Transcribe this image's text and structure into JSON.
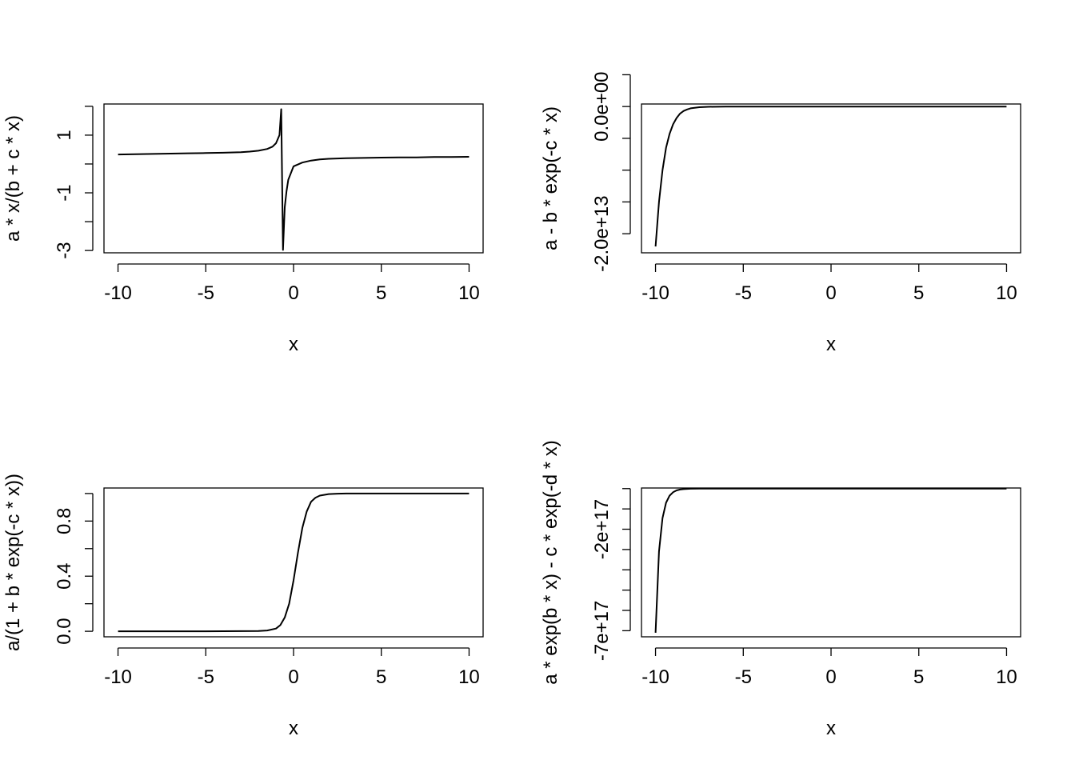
{
  "chart_data": [
    {
      "type": "line",
      "title": "",
      "xlabel": "x",
      "ylabel": "a * x/(b + c * x)",
      "xlim": [
        -10.8,
        10.8
      ],
      "ylim": [
        -3.08,
        2.08
      ],
      "x_ticks": [
        -10,
        -5,
        0,
        5,
        10
      ],
      "x_tick_labels": [
        "-10",
        "-5",
        "0",
        "5",
        "10"
      ],
      "y_ticks": [
        -3,
        -2,
        -1,
        0,
        1,
        2
      ],
      "y_tick_labels": [
        "-3",
        "",
        "-1",
        "",
        "1",
        ""
      ],
      "grid": false,
      "series": [
        {
          "x": [
            -10,
            -9,
            -8,
            -7,
            -6,
            -5,
            -4,
            -3,
            -2.5,
            -2,
            -1.5,
            -1.2,
            -1,
            -0.8,
            -0.7,
            -0.6,
            -0.5,
            -0.4,
            -0.3,
            0,
            0.5,
            1,
            1.5,
            2,
            3,
            4,
            5,
            6,
            7,
            8,
            9,
            10
          ],
          "y": [
            0.33,
            0.34,
            0.35,
            0.36,
            0.37,
            0.38,
            0.39,
            0.41,
            0.43,
            0.46,
            0.52,
            0.6,
            0.72,
            1.0,
            1.9,
            -2.98,
            -1.5,
            -0.95,
            -0.55,
            -0.08,
            0.05,
            0.12,
            0.16,
            0.18,
            0.2,
            0.21,
            0.22,
            0.23,
            0.23,
            0.24,
            0.24,
            0.25
          ]
        }
      ]
    },
    {
      "type": "line",
      "title": "",
      "xlabel": "x",
      "ylabel": "a - b * exp(-c * x)",
      "xlim": [
        -10.8,
        10.8
      ],
      "ylim": [
        -23000000000000.0,
        400000000000.0
      ],
      "x_ticks": [
        -10,
        -5,
        0,
        5,
        10
      ],
      "x_tick_labels": [
        "-10",
        "-5",
        "0",
        "5",
        "10"
      ],
      "y_ticks": [
        -20000000000000.0,
        -15000000000000.0,
        -10000000000000.0,
        -5000000000000.0,
        0,
        5000000000000.0
      ],
      "y_tick_labels": [
        "-2.0e+13",
        "",
        "",
        "",
        "0.0e+00",
        ""
      ],
      "grid": false,
      "series": [
        {
          "x": [
            -10,
            -9.8,
            -9.6,
            -9.4,
            -9.2,
            -9.0,
            -8.8,
            -8.6,
            -8.4,
            -8.2,
            -8.0,
            -7.5,
            -7,
            -6,
            -5,
            0,
            5,
            10
          ],
          "y": [
            -22000000000000.0,
            -15000000000000.0,
            -10000000000000.0,
            -6500000000000.0,
            -4300000000000.0,
            -2800000000000.0,
            -1800000000000.0,
            -1100000000000.0,
            -700000000000.0,
            -450000000000.0,
            -280000000000.0,
            -100000000000.0,
            -40000000000.0,
            -7000000000.0,
            0,
            0,
            0,
            0
          ]
        }
      ]
    },
    {
      "type": "line",
      "title": "",
      "xlabel": "x",
      "ylabel": "a/(1 + b * exp(-c * x))",
      "xlim": [
        -10.8,
        10.8
      ],
      "ylim": [
        -0.04,
        1.04
      ],
      "x_ticks": [
        -10,
        -5,
        0,
        5,
        10
      ],
      "x_tick_labels": [
        "-10",
        "-5",
        "0",
        "5",
        "10"
      ],
      "y_ticks": [
        0,
        0.2,
        0.4,
        0.6,
        0.8,
        1.0
      ],
      "y_tick_labels": [
        "0.0",
        "",
        "0.4",
        "",
        "0.8",
        ""
      ],
      "grid": false,
      "series": [
        {
          "x": [
            -10,
            -5,
            -2,
            -1.5,
            -1,
            -0.75,
            -0.5,
            -0.25,
            0,
            0.25,
            0.5,
            0.75,
            1,
            1.25,
            1.5,
            2,
            2.5,
            3,
            5,
            10
          ],
          "y": [
            0,
            0,
            0.002,
            0.006,
            0.02,
            0.045,
            0.1,
            0.2,
            0.37,
            0.57,
            0.75,
            0.87,
            0.94,
            0.97,
            0.985,
            0.996,
            0.999,
            1.0,
            1.0,
            1.0
          ]
        }
      ]
    },
    {
      "type": "line",
      "title": "",
      "xlabel": "x",
      "ylabel": "a * exp(b * x) - c * exp(-d * x)",
      "xlim": [
        -10.8,
        10.8
      ],
      "ylim": [
        -7.3e+17,
        3000000000000000.0
      ],
      "x_ticks": [
        -10,
        -5,
        0,
        5,
        10
      ],
      "x_tick_labels": [
        "-10",
        "-5",
        "0",
        "5",
        "10"
      ],
      "y_ticks": [
        -7e+17,
        -6e+17,
        -5e+17,
        -4e+17,
        -3e+17,
        -2e+17,
        -1e+17,
        0
      ],
      "y_tick_labels": [
        "-7e+17",
        "",
        "",
        "",
        "",
        "-2e+17",
        "",
        ""
      ],
      "grid": false,
      "series": [
        {
          "x": [
            -10,
            -9.8,
            -9.6,
            -9.4,
            -9.2,
            -9.0,
            -8.8,
            -8.6,
            -8.4,
            -8.2,
            -8.0,
            -7.5,
            -7,
            -6,
            0,
            5,
            10
          ],
          "y": [
            -7.1e+17,
            -3.1e+17,
            -1.45e+17,
            -7e+16,
            -3.5e+16,
            -1.8e+16,
            -9000000000000000.0,
            -4600000000000000.0,
            -2400000000000000.0,
            -1200000000000000.0,
            -600000000000000.0,
            -200000000000000.0,
            -50000000000000.0,
            -5000000000000.0,
            0,
            0,
            0
          ]
        }
      ]
    }
  ]
}
